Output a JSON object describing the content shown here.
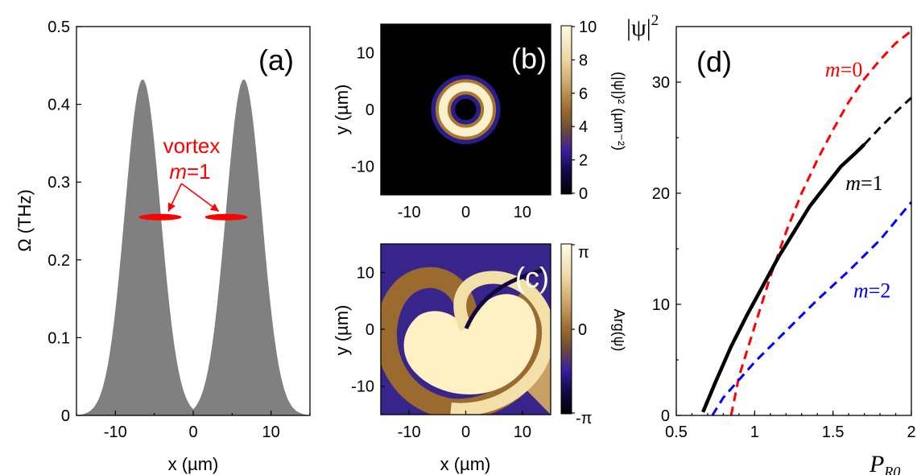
{
  "colors": {
    "fill_gray": "#808080",
    "red": "#ff0000",
    "blue": "#0000ff",
    "black": "#000000"
  },
  "chart_data": [
    {
      "id": "a",
      "type": "area",
      "panel_label": "(a)",
      "xlabel": "x (µm)",
      "ylabel": "Ω (THz)",
      "xlim": [
        -15,
        15
      ],
      "ylim": [
        0,
        0.5
      ],
      "xticks": [
        -10,
        0,
        10
      ],
      "yticks": [
        0,
        0.1,
        0.2,
        0.3,
        0.4,
        0.5
      ],
      "peaks": [
        {
          "center": -6.5,
          "height": 0.432,
          "sigma": 2.3
        },
        {
          "center": 6.5,
          "height": 0.432,
          "sigma": 2.3
        }
      ],
      "vortex_level": 0.255,
      "vortex_spans": [
        [
          -7,
          -1.5
        ],
        [
          1.5,
          7
        ]
      ],
      "annotation": {
        "line1": "vortex",
        "m_symbol": "m",
        "m_value": "=1",
        "x": -1.5,
        "y": 0.3
      }
    },
    {
      "id": "b",
      "type": "heatmap",
      "panel_label": "(b)",
      "xlabel": "",
      "ylabel": "y (µm)",
      "xlim": [
        -15,
        15
      ],
      "ylim": [
        -15,
        15
      ],
      "xticks": [
        -10,
        0,
        10
      ],
      "yticks": [
        -10,
        0,
        10
      ],
      "colorbar": {
        "label": "(|ψ|)² (µm⁻²)",
        "min": 0,
        "max": 10,
        "ticks": [
          0,
          2,
          4,
          6,
          8,
          10
        ]
      },
      "ring": {
        "radius": 4,
        "width": 1.6,
        "peak": 10
      }
    },
    {
      "id": "c",
      "type": "heatmap",
      "panel_label": "(c)",
      "xlabel": "x (µm)",
      "ylabel": "y (µm)",
      "xlim": [
        -15,
        15
      ],
      "ylim": [
        -15,
        15
      ],
      "xticks": [
        -10,
        0,
        10
      ],
      "yticks": [
        -10,
        0,
        10
      ],
      "colorbar": {
        "label": "Arg(ψ)",
        "tick_values": [
          "-π",
          "0",
          "π"
        ]
      }
    },
    {
      "id": "d",
      "type": "line",
      "panel_label": "(d)",
      "xlabel": "P",
      "xlabel_sub": "R0",
      "ylabel": "|ψ|",
      "ylabel_sup": "2",
      "xlim": [
        0.5,
        2
      ],
      "ylim": [
        0,
        35
      ],
      "xticks": [
        0.5,
        1,
        1.5,
        2
      ],
      "yticks": [
        0,
        10,
        20,
        30
      ],
      "series": [
        {
          "name": "m=0",
          "m_symbol": "m",
          "m_value": "=0",
          "color": "red",
          "style": "dashed",
          "x": [
            0.85,
            0.9,
            1.0,
            1.1,
            1.2,
            1.3,
            1.4,
            1.5,
            1.6,
            1.7,
            1.8,
            1.9,
            2.0
          ],
          "y": [
            0,
            3.5,
            8.0,
            12.5,
            16.5,
            20.0,
            23.0,
            25.7,
            28.2,
            30.3,
            32.0,
            33.5,
            34.6
          ],
          "label_at": [
            1.45,
            30.5
          ]
        },
        {
          "name": "m=1",
          "m_symbol": "m",
          "m_value": "=1",
          "color": "black",
          "style": "solid",
          "x": [
            0.67,
            0.75,
            0.85,
            0.95,
            1.05,
            1.15,
            1.25,
            1.35,
            1.45,
            1.55,
            1.65,
            1.7
          ],
          "y": [
            0.3,
            3.0,
            6.2,
            9.0,
            11.6,
            14.2,
            16.5,
            18.8,
            20.6,
            22.4,
            23.7,
            24.4
          ],
          "label_at": [
            1.58,
            20.3
          ]
        },
        {
          "name": "m=1 (cont.)",
          "color": "black",
          "style": "dashed",
          "x": [
            1.7,
            1.8,
            1.9,
            2.0
          ],
          "y": [
            24.4,
            25.9,
            27.3,
            28.6
          ]
        },
        {
          "name": "m=2",
          "m_symbol": "m",
          "m_value": "=2",
          "color": "blue",
          "style": "dashed",
          "x": [
            0.73,
            0.8,
            0.9,
            1.0,
            1.1,
            1.2,
            1.3,
            1.4,
            1.5,
            1.6,
            1.7,
            1.8,
            1.9,
            2.0
          ],
          "y": [
            0,
            1.6,
            3.2,
            4.8,
            6.2,
            7.6,
            9.0,
            10.4,
            11.7,
            13.0,
            14.4,
            15.8,
            17.5,
            19.2
          ],
          "label_at": [
            1.63,
            10.6
          ]
        }
      ]
    }
  ]
}
